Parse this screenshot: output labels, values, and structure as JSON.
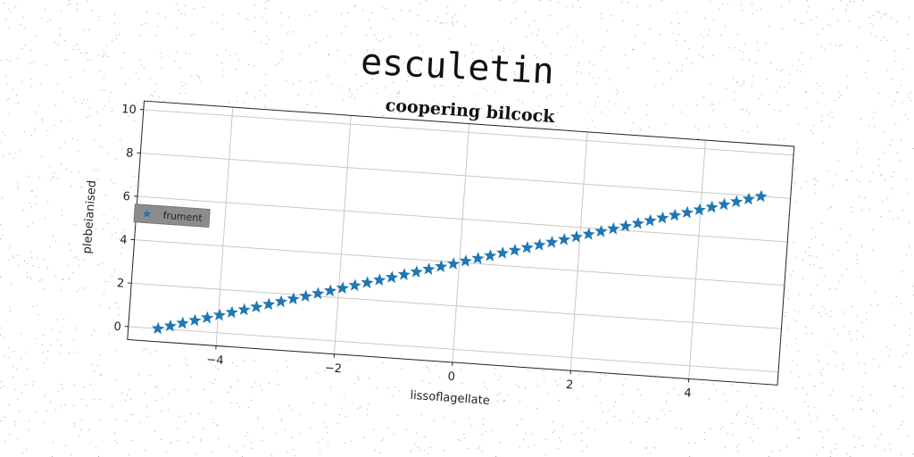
{
  "figure": {
    "suptitle": "esculetin"
  },
  "chart_data": {
    "type": "scatter",
    "title": "coopering bilcock",
    "xlabel": "lissoflagellate",
    "ylabel": "plebeianised",
    "xlim": [
      -5.5,
      5.5
    ],
    "ylim": [
      -0.6,
      10.4
    ],
    "xticks": [
      -4,
      -2,
      0,
      2,
      4
    ],
    "yticks": [
      0,
      2,
      4,
      6,
      8,
      10
    ],
    "xtick_labels": [
      "−4",
      "−2",
      "0",
      "2",
      "4"
    ],
    "ytick_labels": [
      "0",
      "2",
      "4",
      "6",
      "8",
      "10"
    ],
    "grid": true,
    "legend": {
      "position": "center-left",
      "entries": [
        "frument"
      ]
    },
    "series": [
      {
        "name": "frument",
        "marker": "star",
        "color": "#1f77b4",
        "x": [
          -5.0,
          -4.796,
          -4.592,
          -4.388,
          -4.184,
          -3.98,
          -3.776,
          -3.571,
          -3.367,
          -3.163,
          -2.959,
          -2.755,
          -2.551,
          -2.347,
          -2.143,
          -1.939,
          -1.735,
          -1.531,
          -1.327,
          -1.122,
          -0.918,
          -0.714,
          -0.51,
          -0.306,
          -0.102,
          0.102,
          0.306,
          0.51,
          0.714,
          0.918,
          1.122,
          1.327,
          1.531,
          1.735,
          1.939,
          2.143,
          2.347,
          2.551,
          2.755,
          2.959,
          3.163,
          3.367,
          3.571,
          3.776,
          3.98,
          4.184,
          4.388,
          4.592,
          4.796,
          5.0
        ],
        "y": [
          0.0,
          0.163,
          0.327,
          0.49,
          0.653,
          0.816,
          0.98,
          1.143,
          1.306,
          1.469,
          1.633,
          1.796,
          1.959,
          2.122,
          2.286,
          2.449,
          2.612,
          2.776,
          2.939,
          3.102,
          3.265,
          3.429,
          3.592,
          3.755,
          3.918,
          4.082,
          4.245,
          4.408,
          4.571,
          4.735,
          4.898,
          5.061,
          5.224,
          5.388,
          5.551,
          5.714,
          5.878,
          6.041,
          6.204,
          6.367,
          6.531,
          6.694,
          6.857,
          7.02,
          7.184,
          7.347,
          7.51,
          7.673,
          7.837,
          8.0
        ]
      }
    ]
  }
}
